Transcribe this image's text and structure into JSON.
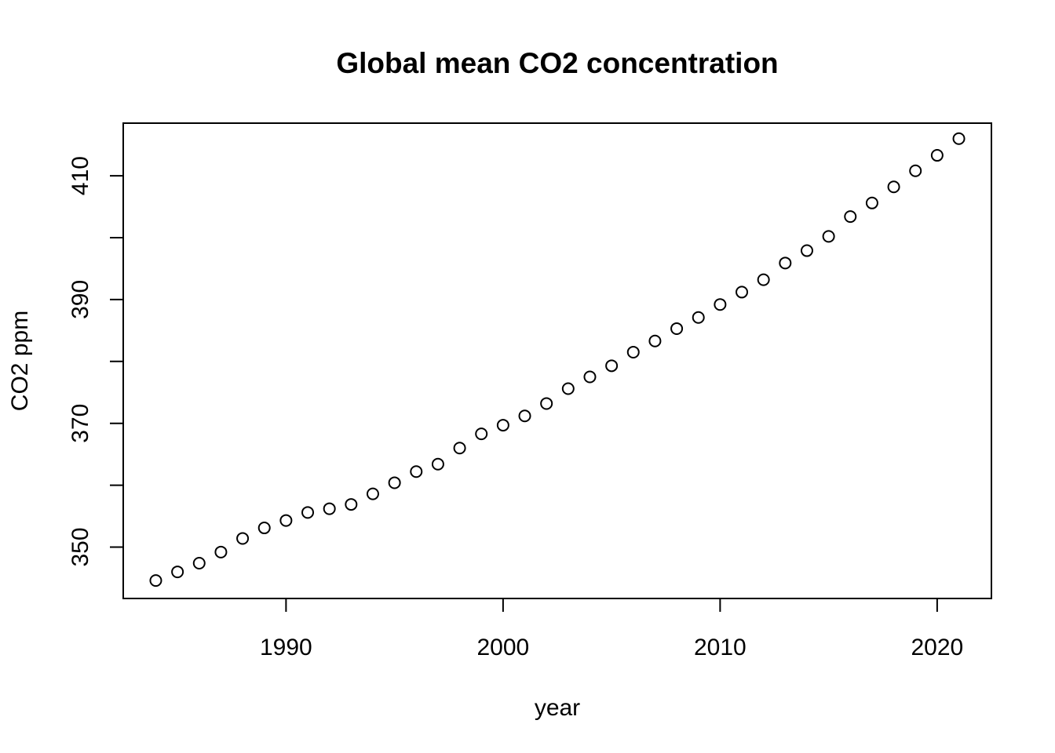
{
  "chart_data": {
    "type": "scatter",
    "title": "Global mean CO2 concentration",
    "xlabel": "year",
    "ylabel": "CO2 ppm",
    "xlim": [
      1982.5,
      2022.5
    ],
    "ylim": [
      341.7,
      418.5
    ],
    "xticks": [
      1990,
      2000,
      2010,
      2020
    ],
    "yticks": [
      350,
      360,
      370,
      380,
      390,
      400,
      410
    ],
    "yticks_labeled": [
      350,
      370,
      390,
      410
    ],
    "grid": false,
    "x": [
      1984,
      1985,
      1986,
      1987,
      1988,
      1989,
      1990,
      1991,
      1992,
      1993,
      1994,
      1995,
      1996,
      1997,
      1998,
      1999,
      2000,
      2001,
      2002,
      2003,
      2004,
      2005,
      2006,
      2007,
      2008,
      2009,
      2010,
      2011,
      2012,
      2013,
      2014,
      2015,
      2016,
      2017,
      2018,
      2019,
      2020,
      2021
    ],
    "y": [
      344.6,
      346.0,
      347.4,
      349.2,
      351.4,
      353.1,
      354.3,
      355.6,
      356.2,
      356.9,
      358.6,
      360.4,
      362.2,
      363.4,
      366.0,
      368.3,
      369.7,
      371.2,
      373.2,
      375.6,
      377.5,
      379.3,
      381.5,
      383.3,
      385.3,
      387.1,
      389.2,
      391.2,
      393.2,
      395.9,
      397.9,
      400.2,
      403.4,
      405.6,
      408.2,
      410.8,
      413.3,
      416.0
    ]
  }
}
